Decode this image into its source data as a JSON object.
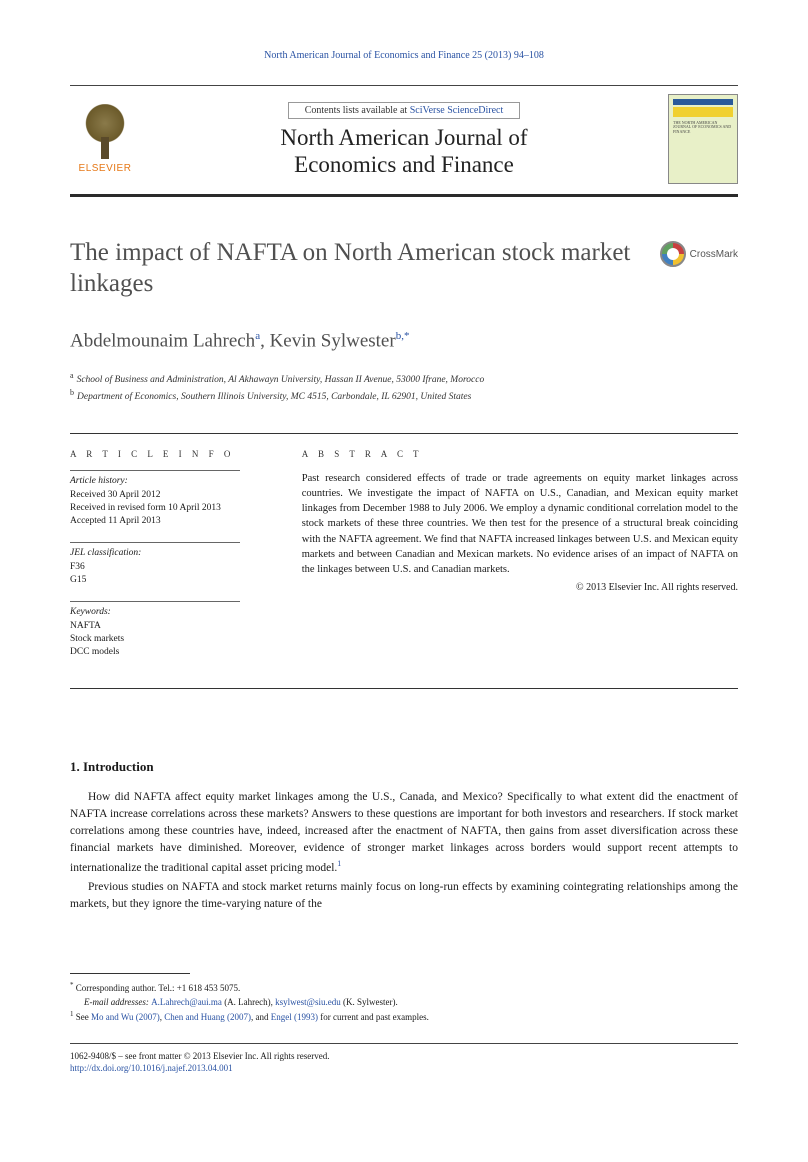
{
  "running_head": "North American Journal of Economics and Finance 25 (2013) 94–108",
  "masthead": {
    "contents_prefix": "Contents lists available at ",
    "contents_link": "SciVerse ScienceDirect",
    "journal_name_line1": "North American Journal of",
    "journal_name_line2": "Economics and Finance",
    "publisher": "ELSEVIER"
  },
  "crossmark_label": "CrossMark",
  "title": "The impact of NAFTA on North American stock market linkages",
  "authors_html": "Abdelmounaim Lahrech",
  "author1_sup": "a",
  "author2": "Kevin Sylwester",
  "author2_sup": "b,",
  "corr_mark": "*",
  "affiliations": {
    "a_sup": "a",
    "a": "School of Business and Administration, Al Akhawayn University, Hassan II Avenue, 53000 Ifrane, Morocco",
    "b_sup": "b",
    "b": "Department of Economics, Southern Illinois University, MC 4515, Carbondale, IL 62901, United States"
  },
  "info": {
    "heading": "a r t i c l e    i n f o",
    "history_label": "Article history:",
    "received": "Received 30 April 2012",
    "revised": "Received in revised form 10 April 2013",
    "accepted": "Accepted 11 April 2013",
    "jel_label": "JEL classification:",
    "jel1": "F36",
    "jel2": "G15",
    "keywords_label": "Keywords:",
    "kw1": "NAFTA",
    "kw2": "Stock markets",
    "kw3": "DCC models"
  },
  "abstract": {
    "heading": "a b s t r a c t",
    "body": "Past research considered effects of trade or trade agreements on equity market linkages across countries. We investigate the impact of NAFTA on U.S., Canadian, and Mexican equity market linkages from December 1988 to July 2006. We employ a dynamic conditional correlation model to the stock markets of these three countries. We then test for the presence of a structural break coinciding with the NAFTA agreement. We find that NAFTA increased linkages between U.S. and Mexican equity markets and between Canadian and Mexican markets. No evidence arises of an impact of NAFTA on the linkages between U.S. and Canadian markets.",
    "copyright": "© 2013 Elsevier Inc. All rights reserved."
  },
  "section1_heading": "1.  Introduction",
  "para1_a": "How did NAFTA affect equity market linkages among the U.S., Canada, and Mexico? Specifically to what extent did the enactment of NAFTA increase correlations across these markets? Answers to these questions are important for both investors and researchers. If stock market correlations among these countries have, indeed, increased after the enactment of NAFTA, then gains from asset diversification across these financial markets have diminished. Moreover, evidence of stronger market linkages across borders would support recent attempts to internationalize the traditional capital asset pricing model.",
  "para1_sup": "1",
  "para2": "Previous studies on NAFTA and stock market returns mainly focus on long-run effects by examining cointegrating relationships among the markets, but they ignore the time-varying nature of the",
  "footnotes": {
    "corr_mark": "*",
    "corr": "Corresponding author. Tel.: +1 618 453 5075.",
    "email_label": "E-mail addresses: ",
    "email1": "A.Lahrech@aui.ma",
    "email1_who": " (A. Lahrech), ",
    "email2": "ksylwest@siu.edu",
    "email2_who": " (K. Sylwester).",
    "fn1_mark": "1",
    "fn1_a": "See ",
    "fn1_c1": "Mo and Wu (2007)",
    "fn1_b": ", ",
    "fn1_c2": "Chen and Huang (2007)",
    "fn1_c": ", and ",
    "fn1_c3": "Engel (1993)",
    "fn1_d": " for current and past examples."
  },
  "bottom": {
    "issn_line": "1062-9408/$ – see front matter © 2013 Elsevier Inc. All rights reserved.",
    "doi": "http://dx.doi.org/10.1016/j.najef.2013.04.001"
  }
}
